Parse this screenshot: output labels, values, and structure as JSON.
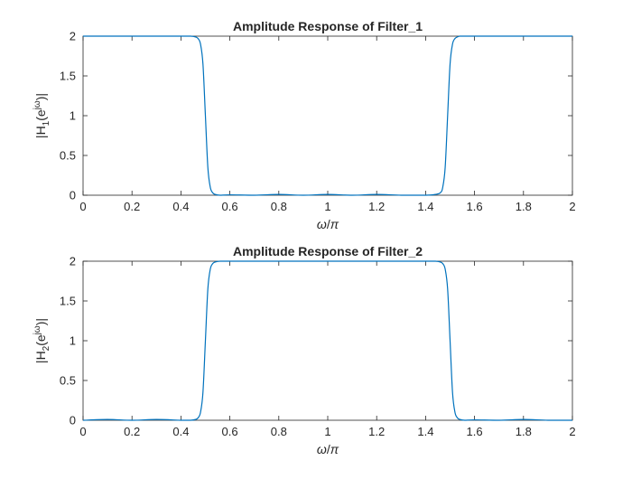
{
  "chart_data": [
    {
      "type": "line",
      "title": "Amplitude Response of Filter_1",
      "xlabel_parts": [
        "ω",
        "/",
        "π"
      ],
      "ylabel_parts": [
        "|H",
        "1",
        "(e",
        "jω",
        ")|"
      ],
      "xlim": [
        0,
        2
      ],
      "ylim": [
        0,
        2
      ],
      "xticks": [
        0,
        0.2,
        0.4,
        0.6,
        0.8,
        1,
        1.2,
        1.4,
        1.6,
        1.8,
        2
      ],
      "xtick_labels": [
        "0",
        "0.2",
        "0.4",
        "0.6",
        "0.8",
        "1",
        "1.2",
        "1.4",
        "1.6",
        "1.8",
        "2"
      ],
      "yticks": [
        0,
        0.5,
        1,
        1.5,
        2
      ],
      "ytick_labels": [
        "0",
        "0.5",
        "1",
        "1.5",
        "2"
      ],
      "grid": false,
      "color": "#0072BD",
      "series": [
        {
          "x": [
            0,
            0.1,
            0.2,
            0.3,
            0.4,
            0.44,
            0.46,
            0.47,
            0.48,
            0.49,
            0.5,
            0.51,
            0.52,
            0.53,
            0.54,
            0.56,
            0.6,
            0.7,
            0.8,
            0.9,
            1.0,
            1.1,
            1.2,
            1.3,
            1.4,
            1.44,
            1.46,
            1.47,
            1.48,
            1.49,
            1.5,
            1.51,
            1.52,
            1.53,
            1.54,
            1.56,
            1.6,
            1.8,
            2.0
          ],
          "y": [
            2.0,
            2.0,
            2.0,
            2.0,
            2.0,
            2.0,
            1.99,
            1.97,
            1.9,
            1.65,
            1.0,
            0.35,
            0.1,
            0.03,
            0.01,
            0.0,
            0.005,
            0.0,
            0.01,
            0.0,
            0.01,
            0.0,
            0.01,
            0.0,
            0.0,
            0.01,
            0.03,
            0.1,
            0.35,
            1.0,
            1.65,
            1.9,
            1.97,
            1.99,
            2.0,
            2.0,
            2.0,
            2.0,
            2.0
          ]
        }
      ]
    },
    {
      "type": "line",
      "title": "Amplitude Response of Filter_2",
      "xlabel_parts": [
        "ω",
        "/",
        "π"
      ],
      "ylabel_parts": [
        "|H",
        "2",
        "(e",
        "jω",
        ")|"
      ],
      "xlim": [
        0,
        2
      ],
      "ylim": [
        0,
        2
      ],
      "xticks": [
        0,
        0.2,
        0.4,
        0.6,
        0.8,
        1,
        1.2,
        1.4,
        1.6,
        1.8,
        2
      ],
      "xtick_labels": [
        "0",
        "0.2",
        "0.4",
        "0.6",
        "0.8",
        "1",
        "1.2",
        "1.4",
        "1.6",
        "1.8",
        "2"
      ],
      "yticks": [
        0,
        0.5,
        1,
        1.5,
        2
      ],
      "ytick_labels": [
        "0",
        "0.5",
        "1",
        "1.5",
        "2"
      ],
      "grid": false,
      "color": "#0072BD",
      "series": [
        {
          "x": [
            0,
            0.1,
            0.2,
            0.3,
            0.4,
            0.44,
            0.46,
            0.47,
            0.48,
            0.49,
            0.5,
            0.51,
            0.52,
            0.53,
            0.54,
            0.56,
            0.6,
            0.7,
            0.8,
            0.9,
            1.0,
            1.1,
            1.2,
            1.3,
            1.4,
            1.44,
            1.46,
            1.47,
            1.48,
            1.49,
            1.5,
            1.51,
            1.52,
            1.53,
            1.54,
            1.56,
            1.6,
            1.7,
            1.8,
            1.9,
            2.0
          ],
          "y": [
            0.0,
            0.01,
            0.0,
            0.01,
            0.0,
            0.0,
            0.01,
            0.03,
            0.1,
            0.35,
            1.0,
            1.65,
            1.9,
            1.97,
            1.99,
            2.0,
            2.0,
            2.0,
            2.0,
            2.0,
            2.0,
            2.0,
            2.0,
            2.0,
            2.0,
            2.0,
            1.99,
            1.97,
            1.9,
            1.65,
            1.0,
            0.35,
            0.1,
            0.03,
            0.01,
            0.0,
            0.005,
            0.0,
            0.01,
            0.0,
            0.0
          ]
        }
      ]
    }
  ]
}
